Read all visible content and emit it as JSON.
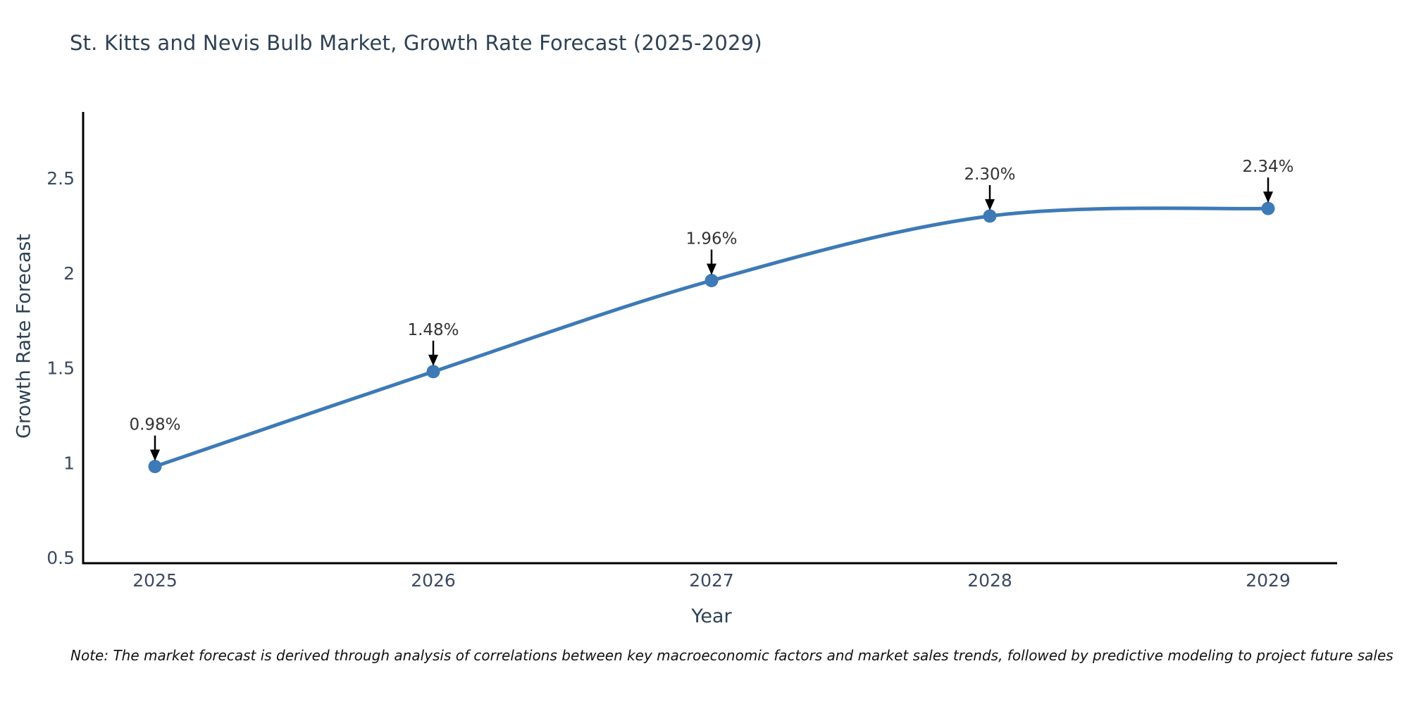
{
  "title": "St. Kitts and Nevis Bulb Market, Growth Rate Forecast (2025-2029)",
  "note": "Note: The market forecast is derived through analysis of correlations between key macroeconomic factors and market sales trends, followed by predictive modeling to project future sales",
  "chart_data": {
    "type": "line",
    "title": "St. Kitts and Nevis Bulb Market, Growth Rate Forecast (2025-2029)",
    "xlabel": "Year",
    "ylabel": "Growth Rate Forecast",
    "x": [
      2025,
      2026,
      2027,
      2028,
      2029
    ],
    "values": [
      0.98,
      1.48,
      1.96,
      2.3,
      2.34
    ],
    "point_labels": [
      "0.98%",
      "1.48%",
      "1.96%",
      "2.30%",
      "2.34%"
    ],
    "yticks": [
      0.5,
      1,
      1.5,
      2,
      2.5
    ],
    "xticks": [
      "2025",
      "2026",
      "2027",
      "2028",
      "2029"
    ],
    "ylim": [
      0.47,
      2.85
    ],
    "grid": false,
    "legend": "none",
    "line_color": "#3d7ab6",
    "marker_color": "#3d7ab6",
    "axis_color": "#000000",
    "annotation_arrow_color": "#000000",
    "curve": "spline"
  }
}
